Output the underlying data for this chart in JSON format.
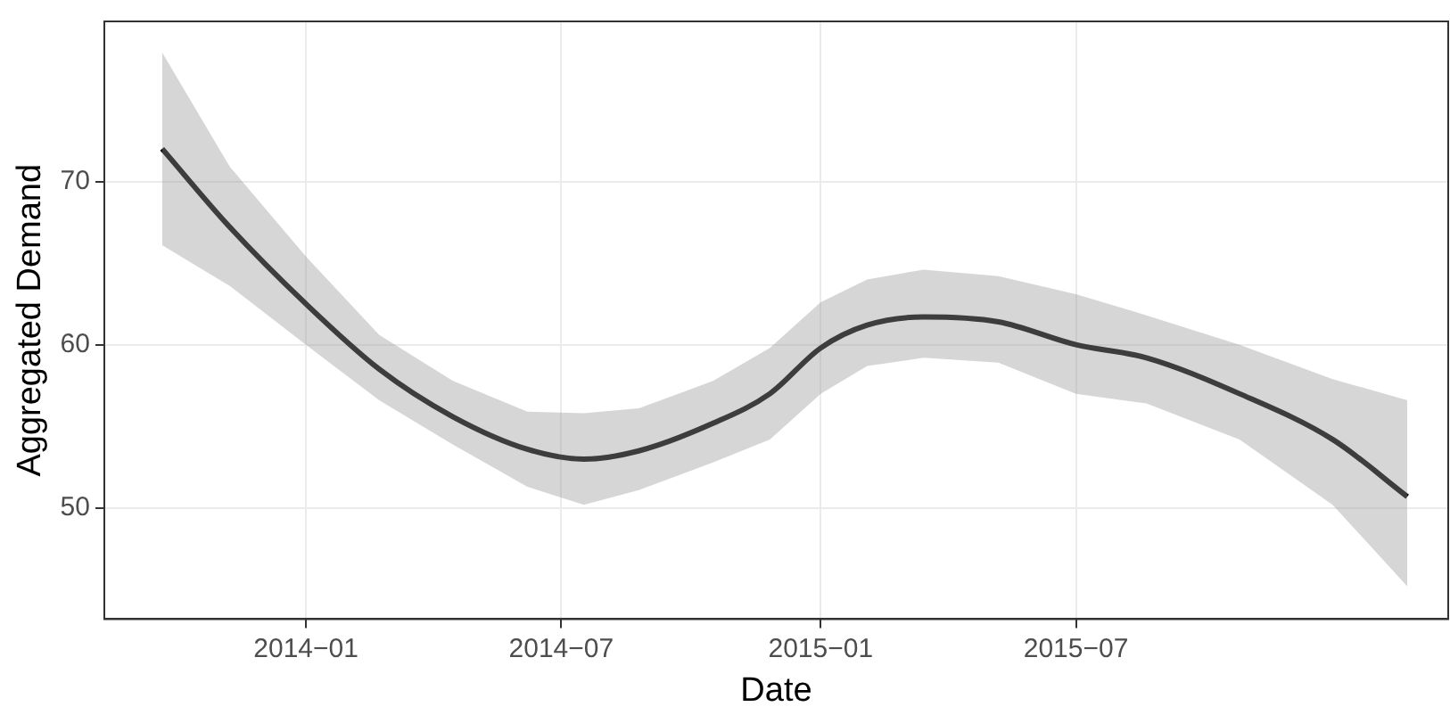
{
  "chart_data": {
    "type": "line",
    "xlabel": "Date",
    "ylabel": "Aggregated Demand",
    "x": [
      "2013-09-21",
      "2013-11-08",
      "2014-01-01",
      "2014-02-22",
      "2014-04-15",
      "2014-06-07",
      "2014-07-17",
      "2014-08-25",
      "2014-10-17",
      "2014-11-26",
      "2015-01-01",
      "2015-02-03",
      "2015-03-15",
      "2015-05-07",
      "2015-07-01",
      "2015-08-20",
      "2015-10-25",
      "2015-12-30",
      "2016-02-21"
    ],
    "series": [
      {
        "color": "#000000",
        "values": [
          72.0,
          67.2,
          62.5,
          58.5,
          55.6,
          53.6,
          53.0,
          53.5,
          55.2,
          57.0,
          59.8,
          61.2,
          61.7,
          61.4,
          60.0,
          59.2,
          57.0,
          54.2,
          50.7
        ],
        "upper": [
          77.9,
          70.9,
          65.4,
          60.6,
          57.8,
          55.9,
          55.8,
          56.1,
          57.8,
          59.8,
          62.6,
          64.0,
          64.6,
          64.2,
          63.1,
          61.8,
          60.0,
          57.9,
          56.6
        ],
        "lower": [
          66.1,
          63.6,
          60.0,
          56.6,
          53.9,
          51.3,
          50.2,
          51.1,
          52.8,
          54.2,
          57.0,
          58.7,
          59.2,
          58.9,
          57.0,
          56.4,
          54.2,
          50.2,
          45.2
        ]
      }
    ],
    "xlim": [
      "2013-08-11",
      "2016-03-21"
    ],
    "xticks": [
      {
        "value": "2014-01",
        "label": "2014−01"
      },
      {
        "value": "2014-07",
        "label": "2014−07"
      },
      {
        "value": "2015-01",
        "label": "2015−01"
      },
      {
        "value": "2015-07",
        "label": "2015−07"
      }
    ],
    "ylim": [
      43.2,
      79.8
    ],
    "yticks": [
      50,
      60,
      70
    ],
    "grid": true,
    "legend": false,
    "marker": "none",
    "line_style": "solid"
  }
}
